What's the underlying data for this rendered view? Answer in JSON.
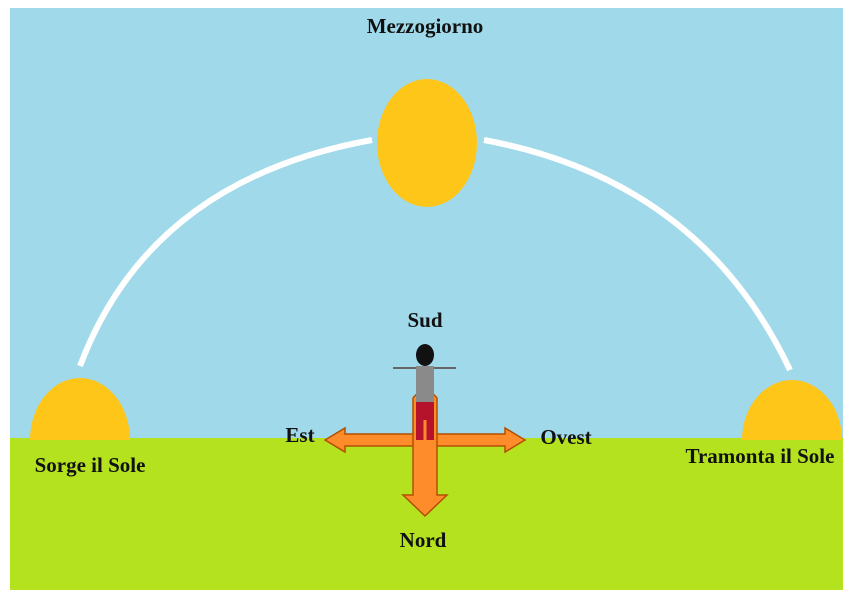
{
  "labels": {
    "noon": "Mezzogiorno",
    "south": "Sud",
    "east": "Est",
    "west": "Ovest",
    "north": "Nord",
    "sunrise": "Sorge il Sole",
    "sunset": "Tramonta il Sole"
  }
}
